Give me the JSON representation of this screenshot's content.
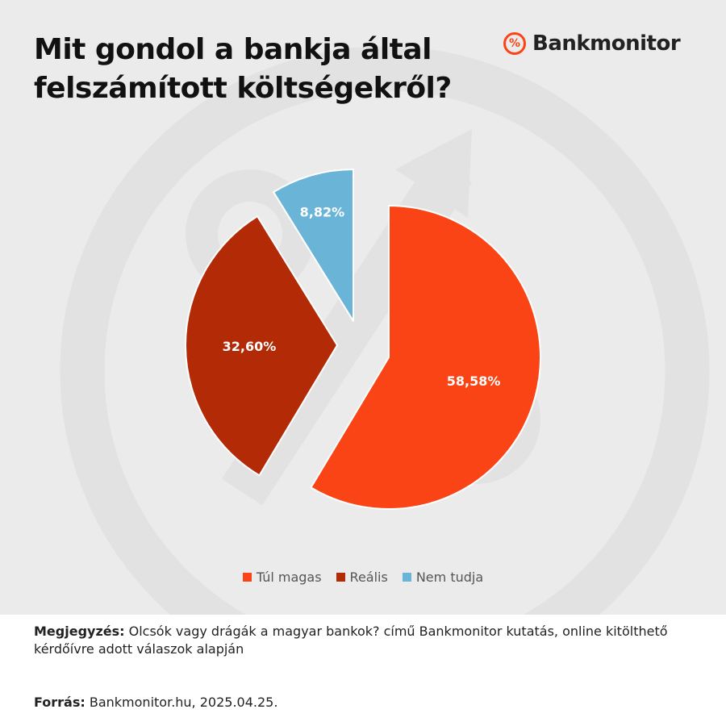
{
  "title_lines": [
    "Mit gondol a bankja által",
    "felszámított költségekről?"
  ],
  "brand": {
    "mark": "%",
    "name": "Bankmonitor",
    "color": "#fb4415"
  },
  "chart_data": {
    "type": "pie",
    "categories": [
      "Túl magas",
      "Reális",
      "Nem tudja"
    ],
    "values": [
      58.58,
      32.6,
      8.82
    ],
    "value_labels": [
      "58,58%",
      "32,60%",
      "8,82%"
    ],
    "colors": [
      "#fb4415",
      "#b32a07",
      "#6ab4d8"
    ],
    "exploded": true,
    "start": "12 o'clock, clockwise",
    "legend_position": "bottom"
  },
  "notes": {
    "note_label": "Megjegyzés:",
    "note_text": " Olcsók vagy drágák a magyar bankok? című Bankmonitor kutatás, online kitölthető kérdőívre adott válaszok alapján",
    "source_label": "Forrás:",
    "source_text": " Bankmonitor.hu, 2025.04.25."
  }
}
